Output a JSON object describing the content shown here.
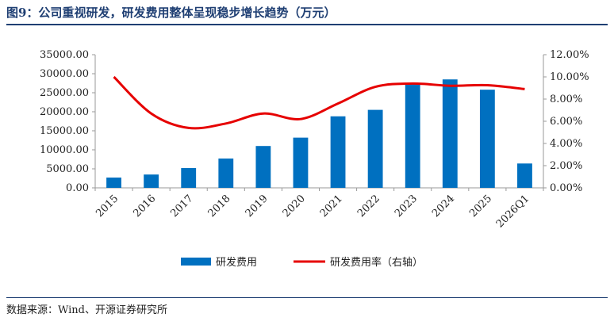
{
  "header": {
    "title": "图9：公司重视研发，研发费用整体呈现稳步增长趋势（万元）"
  },
  "footer": {
    "source": "数据来源：Wind、开源证券研究所"
  },
  "colors": {
    "bar": "#0070c0",
    "line": "#e60000",
    "title": "#1f3f73"
  },
  "chart_data": {
    "type": "bar",
    "title": "",
    "xlabel": "",
    "ylabel": "",
    "categories": [
      "2015",
      "2016",
      "2017",
      "2018",
      "2019",
      "2020",
      "2021",
      "2022",
      "2023",
      "2024",
      "2025",
      "2026Q1"
    ],
    "series": [
      {
        "name": "研发费用",
        "type": "bar",
        "axis": "left",
        "values": [
          2700,
          3500,
          5200,
          7700,
          11000,
          13200,
          18800,
          20500,
          27400,
          28500,
          25800,
          6400
        ]
      },
      {
        "name": "研发费用率（右轴）",
        "type": "line",
        "axis": "right",
        "values": [
          10.0,
          6.7,
          5.4,
          5.8,
          6.7,
          6.2,
          7.6,
          9.1,
          9.4,
          9.2,
          9.25,
          8.9
        ]
      }
    ],
    "ylim": [
      0,
      35000
    ],
    "y2lim": [
      0,
      12
    ],
    "yticks": [
      "0.00",
      "5000.00",
      "10000.00",
      "15000.00",
      "20000.00",
      "25000.00",
      "30000.00",
      "35000.00"
    ],
    "y2ticks": [
      "0.00%",
      "2.00%",
      "4.00%",
      "6.00%",
      "8.00%",
      "10.00%",
      "12.00%"
    ],
    "grid": false,
    "legend_position": "bottom"
  }
}
